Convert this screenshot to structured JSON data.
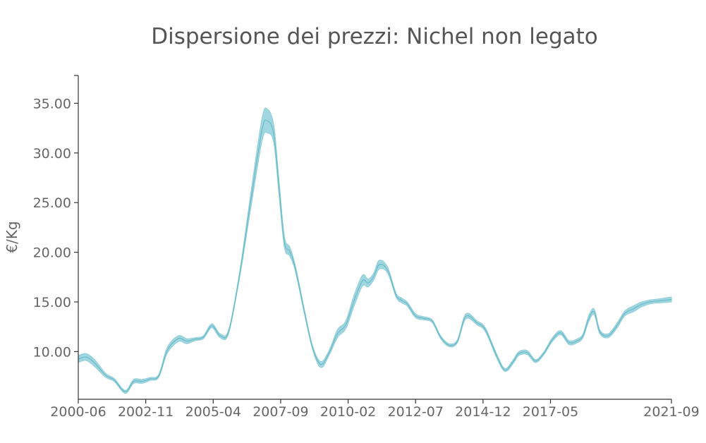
{
  "chart_data": {
    "type": "area",
    "title": "Dispersione dei prezzi: Nichel non legato",
    "ylabel": "€/Kg",
    "xlabel": "",
    "ylim": [
      5.2,
      37.8
    ],
    "yticks": [
      10,
      15,
      20,
      25,
      30,
      35
    ],
    "ytick_labels": [
      "10.00",
      "15.00",
      "20.00",
      "25.00",
      "30.00",
      "35.00"
    ],
    "xlim": [
      2000.4167,
      2021.6667
    ],
    "xticks": [
      2000.4167,
      2002.8333,
      2005.25,
      2007.6667,
      2010.0833,
      2012.5,
      2014.9167,
      2017.3333,
      2021.6667
    ],
    "xtick_labels": [
      "2000-06",
      "2002-11",
      "2005-04",
      "2007-09",
      "2010-02",
      "2012-07",
      "2014-12",
      "2017-05",
      "2021-09"
    ],
    "grid": false,
    "colors": {
      "band": "#8fcfda",
      "line": "#66b7c6",
      "text": "#555555"
    },
    "series": [
      {
        "x": [
          2000.42,
          2000.7,
          2001.0,
          2001.4,
          2001.7,
          2002.1,
          2002.4,
          2002.7,
          2003.0,
          2003.3,
          2003.6,
          2004.0,
          2004.3,
          2004.6,
          2004.9,
          2005.2,
          2005.5,
          2005.8,
          2006.2,
          2006.6,
          2007.0,
          2007.2,
          2007.42,
          2007.6,
          2007.8,
          2008.0,
          2008.2,
          2008.5,
          2008.8,
          2009.1,
          2009.4,
          2009.7,
          2010.0,
          2010.3,
          2010.6,
          2010.8,
          2011.0,
          2011.2,
          2011.5,
          2011.8,
          2012.0,
          2012.2,
          2012.5,
          2012.8,
          2013.1,
          2013.4,
          2013.7,
          2014.0,
          2014.3,
          2014.7,
          2015.0,
          2015.4,
          2015.7,
          2016.0,
          2016.2,
          2016.5,
          2016.8,
          2017.1,
          2017.4,
          2017.7,
          2018.0,
          2018.3,
          2018.5,
          2018.7,
          2018.9,
          2019.1,
          2019.4,
          2019.7,
          2020.0,
          2020.3,
          2020.6,
          2020.9,
          2021.2,
          2021.67
        ],
        "lower": [
          8.9,
          9.1,
          8.5,
          7.4,
          7.0,
          5.8,
          6.8,
          6.8,
          7.1,
          7.4,
          9.8,
          11.0,
          10.8,
          11.1,
          11.3,
          12.4,
          11.4,
          11.8,
          17.5,
          24.5,
          31.2,
          32.0,
          31.0,
          26.0,
          20.5,
          19.6,
          18.0,
          14.0,
          10.3,
          8.4,
          9.6,
          11.4,
          12.3,
          14.6,
          16.6,
          16.5,
          17.2,
          18.3,
          17.9,
          15.5,
          14.9,
          14.6,
          13.4,
          13.2,
          12.9,
          11.3,
          10.5,
          10.9,
          13.3,
          12.7,
          12.0,
          9.4,
          8.0,
          8.8,
          9.6,
          9.7,
          8.9,
          9.7,
          11.0,
          11.7,
          10.7,
          10.9,
          11.4,
          13.0,
          13.7,
          11.8,
          11.4,
          12.3,
          13.6,
          14.0,
          14.5,
          14.8,
          14.9,
          15.0
        ],
        "upper": [
          9.6,
          9.8,
          9.2,
          7.8,
          7.3,
          6.1,
          7.2,
          7.2,
          7.4,
          7.7,
          10.4,
          11.6,
          11.3,
          11.4,
          11.6,
          12.8,
          11.8,
          12.2,
          18.1,
          26.0,
          33.5,
          34.4,
          32.8,
          27.5,
          21.6,
          20.5,
          18.6,
          14.5,
          10.7,
          9.0,
          10.1,
          12.2,
          13.1,
          15.7,
          17.7,
          17.3,
          17.9,
          19.2,
          18.5,
          15.9,
          15.4,
          15.0,
          13.8,
          13.5,
          13.2,
          11.6,
          10.8,
          11.2,
          13.8,
          13.1,
          12.4,
          9.8,
          8.3,
          9.2,
          10.0,
          10.1,
          9.2,
          10.0,
          11.4,
          12.1,
          11.1,
          11.3,
          11.8,
          13.6,
          14.3,
          12.2,
          11.8,
          12.8,
          14.1,
          14.6,
          15.0,
          15.2,
          15.3,
          15.5
        ]
      }
    ]
  }
}
